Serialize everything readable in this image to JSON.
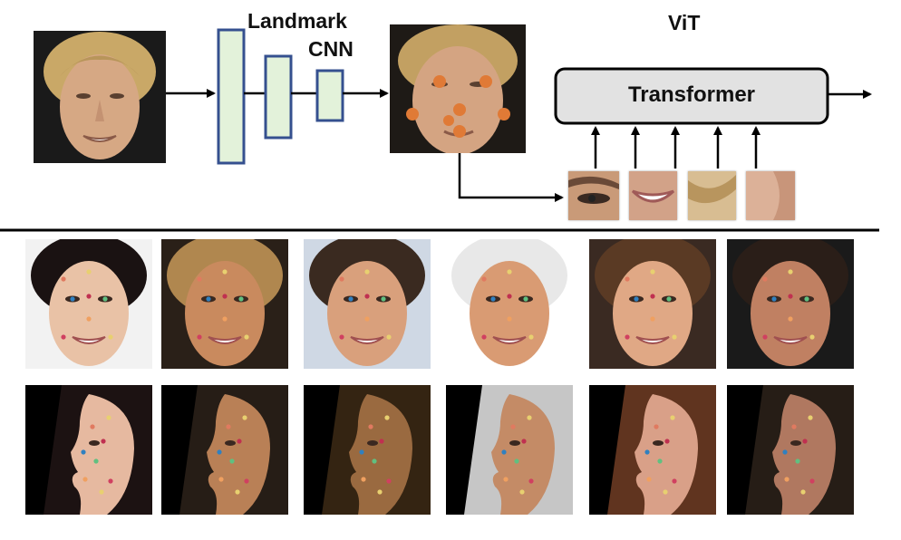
{
  "labels": {
    "cnn_line1": "Landmark",
    "cnn_line2": "CNN",
    "vit": "ViT",
    "transformer": "Transformer"
  },
  "colors": {
    "cnn_block_fill": "#e3f2da",
    "cnn_block_stroke": "#35508f",
    "transformer_fill": "#e2e2e2",
    "landmark_big": "#e07a36",
    "arrow": "#000000"
  },
  "frontal_faces": [
    {
      "id": "katy",
      "skin": "#e9c2a6",
      "hair": "#1a1212",
      "bg": "#f2f2f2"
    },
    {
      "id": "carmen",
      "skin": "#c98a5e",
      "hair": "#b0874f",
      "bg": "#2a2018"
    },
    {
      "id": "blake",
      "skin": "#d9a07c",
      "hair": "#3a2a20",
      "bg": "#cfd8e4"
    },
    {
      "id": "modi",
      "skin": "#d99b73",
      "hair": "#e8e8e8",
      "bg": "#ffffff"
    },
    {
      "id": "jennifer",
      "skin": "#e0a885",
      "hair": "#5a3a24",
      "bg": "#3a2a22"
    },
    {
      "id": "blake2",
      "skin": "#c08062",
      "hair": "#2a1e18",
      "bg": "#1a1a1a"
    }
  ],
  "profile_faces": [
    {
      "id": "katy-p",
      "skin": "#e6b9a0",
      "hair": "#1f1414",
      "bg": "#000000"
    },
    {
      "id": "carmen-p",
      "skin": "#b98056",
      "hair": "#2a2018",
      "bg": "#000000"
    },
    {
      "id": "blake-p",
      "skin": "#9a6a40",
      "hair": "#3a2814",
      "bg": "#000000"
    },
    {
      "id": "modi-p",
      "skin": "#c48b66",
      "hair": "#dcdcdc",
      "bg": "#000000"
    },
    {
      "id": "julia-p",
      "skin": "#d9a088",
      "hair": "#6a3a22",
      "bg": "#000000"
    },
    {
      "id": "blake-p2",
      "skin": "#b07860",
      "hair": "#2a2018",
      "bg": "#000000"
    }
  ],
  "patches": [
    "eye-patch",
    "mouth-patch",
    "hair-patch",
    "cheek-patch"
  ]
}
